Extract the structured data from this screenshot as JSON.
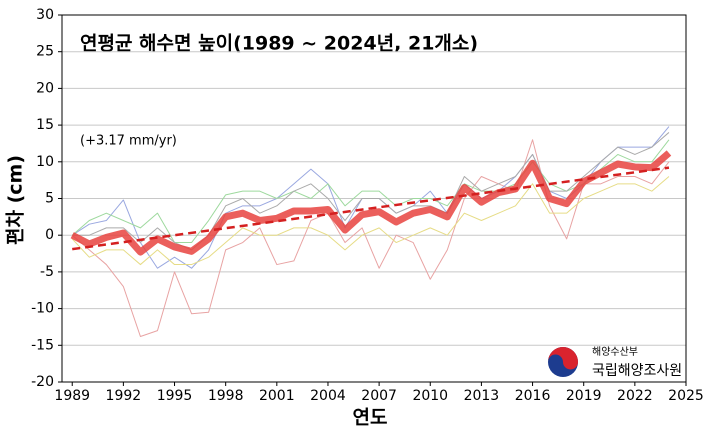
{
  "chart_data": {
    "type": "line",
    "title": "연평균 해수면 높이(1989 ~ 2024년, 21개소)",
    "annotation": "(+3.17 mm/yr)",
    "x_label": "연도",
    "y_label": "편차 (cm)",
    "logo": {
      "ministry": "해양수산부",
      "agency": "국립해양조사원"
    },
    "x": [
      1989,
      1990,
      1991,
      1992,
      1993,
      1994,
      1995,
      1996,
      1997,
      1998,
      1999,
      2000,
      2001,
      2002,
      2003,
      2004,
      2005,
      2006,
      2007,
      2008,
      2009,
      2010,
      2011,
      2012,
      2013,
      2014,
      2015,
      2016,
      2017,
      2018,
      2019,
      2020,
      2021,
      2022,
      2023,
      2024
    ],
    "series": [
      {
        "color": "#e8a3a3",
        "values": [
          0,
          -2,
          -4,
          -7,
          -13.8,
          -13,
          -5,
          -10.7,
          -10.5,
          -2,
          -1,
          1,
          -4,
          -3.5,
          2,
          3,
          -1,
          1,
          -4.5,
          0,
          -1,
          -6,
          -2,
          5,
          8,
          7,
          6,
          13,
          4,
          -0.5,
          7,
          7,
          8,
          8,
          7,
          10
        ]
      },
      {
        "color": "#9aa8e0",
        "values": [
          0,
          1.5,
          2,
          4.8,
          -1,
          -4.5,
          -3,
          -4.5,
          -2,
          3,
          4,
          4,
          5,
          7,
          9,
          7,
          1,
          5,
          5,
          3,
          4,
          6,
          3,
          7,
          5,
          6,
          8,
          11,
          6,
          5,
          7,
          10,
          12,
          12,
          12,
          14.8
        ]
      },
      {
        "color": "#9ed99e",
        "values": [
          0,
          2,
          3,
          2,
          1,
          3,
          -1,
          -1,
          2,
          5.5,
          6,
          6,
          5,
          6,
          5,
          7,
          4,
          6,
          6,
          4,
          5,
          5,
          4,
          7,
          6,
          6,
          7,
          10,
          7,
          6,
          7,
          9,
          11,
          10,
          10,
          13
        ]
      },
      {
        "color": "#e6dc86",
        "values": [
          -0.5,
          -3,
          -2,
          -2,
          -4,
          -2,
          -4,
          -4,
          -3,
          -1,
          1,
          0,
          0,
          1,
          1,
          0,
          -2,
          0,
          1,
          -1,
          0,
          1,
          0,
          3,
          2,
          3,
          4,
          7,
          3,
          3,
          5,
          6,
          7,
          7,
          6,
          8
        ]
      },
      {
        "color": "#aaaaaa",
        "values": [
          0,
          0,
          1,
          1,
          -1,
          1,
          -1,
          -2,
          0,
          4,
          5,
          3,
          4,
          6,
          7,
          5,
          2,
          5,
          5,
          3,
          4,
          4,
          3,
          8,
          6,
          7,
          8,
          11,
          6,
          6,
          8,
          10,
          12,
          11,
          12,
          14
        ]
      },
      {
        "color": "#e8433f",
        "values": [
          0,
          -1.2,
          -0.3,
          0.3,
          -2.3,
          -0.5,
          -1.6,
          -2.2,
          -0.5,
          2.5,
          3,
          2,
          2.3,
          3.3,
          3.3,
          3.5,
          0.7,
          2.8,
          3.2,
          1.8,
          3,
          3.5,
          2.5,
          6.5,
          4.5,
          5.8,
          6.3,
          9.8,
          5,
          4.3,
          7.3,
          8.5,
          9.7,
          9.3,
          9.2,
          11.2
        ]
      }
    ],
    "trend": {
      "color": "#d42020",
      "x": [
        1989,
        2024
      ],
      "values": [
        -1.9,
        9.2
      ]
    },
    "xlim": [
      1988.4,
      2025
    ],
    "xticks": [
      1989,
      1992,
      1995,
      1998,
      2001,
      2004,
      2007,
      2010,
      2013,
      2016,
      2019,
      2022,
      2025
    ],
    "ylim": [
      -20,
      30
    ],
    "yticks": [
      -20,
      -15,
      -10,
      -5,
      0,
      5,
      10,
      15,
      20,
      25,
      30
    ],
    "grid": true
  }
}
